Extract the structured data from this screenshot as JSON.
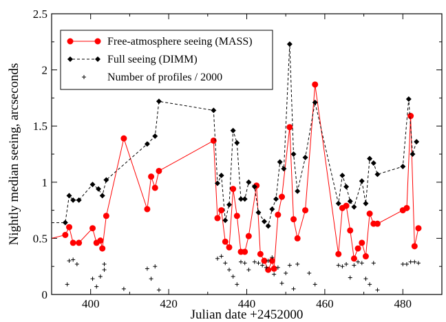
{
  "chart_data": {
    "type": "line",
    "xlabel": "Julian date +2452000",
    "ylabel": "Nightly median seeing, arcseconds",
    "xlim": [
      390,
      490
    ],
    "ylim": [
      0,
      2.5
    ],
    "x_ticks": [
      400,
      420,
      440,
      460,
      480
    ],
    "y_ticks": [
      0,
      0.5,
      1,
      1.5,
      2,
      2.5
    ],
    "x_tick_labels": [
      "400",
      "420",
      "440",
      "460",
      "480"
    ],
    "y_tick_labels": [
      "0",
      "0.5",
      "1",
      "1.5",
      "2",
      "2.5"
    ],
    "legend_position": "top-left",
    "series": [
      {
        "name": "Free-atmosphere seeing (MASS)",
        "style": "solid-line-circles",
        "color": "#ff0000",
        "points": [
          [
            390,
            0.5
          ],
          [
            393.5,
            0.53
          ],
          [
            394.5,
            0.6
          ],
          [
            395.5,
            0.46
          ],
          [
            397,
            0.46
          ],
          [
            400.5,
            0.59
          ],
          [
            401.5,
            0.46
          ],
          [
            402.5,
            0.48
          ],
          [
            403,
            0.41
          ],
          [
            404,
            0.7
          ],
          [
            408.5,
            1.39
          ],
          [
            414.5,
            0.76
          ],
          [
            415.5,
            1.05
          ],
          [
            416.5,
            0.95
          ],
          [
            417.5,
            1.1
          ],
          [
            431.5,
            1.37
          ],
          [
            432.5,
            0.68
          ],
          [
            433.5,
            0.75
          ],
          [
            434.5,
            0.47
          ],
          [
            435.5,
            0.42
          ],
          [
            436.5,
            0.94
          ],
          [
            437.5,
            0.7
          ],
          [
            438.5,
            0.38
          ],
          [
            439.5,
            0.38
          ],
          [
            440.5,
            0.52
          ],
          [
            442.5,
            0.97
          ],
          [
            443.5,
            0.36
          ],
          [
            444.5,
            0.3
          ],
          [
            445.5,
            0.22
          ],
          [
            446.5,
            0.3
          ],
          [
            447,
            0.23
          ],
          [
            448,
            0.71
          ],
          [
            449,
            0.87
          ],
          [
            451,
            1.49
          ],
          [
            452,
            0.67
          ],
          [
            453,
            0.5
          ],
          [
            455,
            0.75
          ],
          [
            457.5,
            1.87
          ],
          [
            463.5,
            0.36
          ],
          [
            464.5,
            0.77
          ],
          [
            465.5,
            0.79
          ],
          [
            466.5,
            0.57
          ],
          [
            467.5,
            0.32
          ],
          [
            468.5,
            0.41
          ],
          [
            469.5,
            0.46
          ],
          [
            470.5,
            0.34
          ],
          [
            471.5,
            0.72
          ],
          [
            472.5,
            0.63
          ],
          [
            473.5,
            0.63
          ],
          [
            480,
            0.75
          ],
          [
            481,
            0.77
          ],
          [
            482,
            1.59
          ],
          [
            483,
            0.43
          ],
          [
            484,
            0.59
          ]
        ]
      },
      {
        "name": "Full seeing (DIMM)",
        "style": "dashed-line-diamonds",
        "color": "#000000",
        "points": [
          [
            390,
            0.64
          ],
          [
            393.5,
            0.64
          ],
          [
            394.5,
            0.88
          ],
          [
            395.5,
            0.84
          ],
          [
            397,
            0.84
          ],
          [
            400.5,
            0.98
          ],
          [
            402,
            0.94
          ],
          [
            403,
            0.88
          ],
          [
            404,
            1.02
          ],
          [
            414.5,
            1.34
          ],
          [
            416.5,
            1.41
          ],
          [
            417.5,
            1.72
          ],
          [
            431.5,
            1.64
          ],
          [
            432.5,
            0.99
          ],
          [
            433.5,
            1.06
          ],
          [
            434.5,
            0.66
          ],
          [
            435.5,
            0.8
          ],
          [
            436.5,
            1.46
          ],
          [
            437.5,
            1.35
          ],
          [
            438.5,
            0.85
          ],
          [
            439.5,
            0.85
          ],
          [
            440.5,
            1.0
          ],
          [
            442,
            0.96
          ],
          [
            443,
            0.73
          ],
          [
            444.5,
            0.65
          ],
          [
            445.5,
            0.61
          ],
          [
            446.5,
            0.76
          ],
          [
            447.5,
            0.85
          ],
          [
            448.5,
            1.18
          ],
          [
            449.5,
            1.12
          ],
          [
            451,
            2.23
          ],
          [
            452,
            1.25
          ],
          [
            453,
            0.92
          ],
          [
            455,
            1.22
          ],
          [
            457.5,
            1.71
          ],
          [
            463.5,
            0.81
          ],
          [
            464.5,
            1.06
          ],
          [
            465.5,
            0.96
          ],
          [
            466.5,
            0.83
          ],
          [
            467.5,
            0.78
          ],
          [
            469.5,
            1.01
          ],
          [
            470.5,
            0.81
          ],
          [
            471.5,
            1.21
          ],
          [
            472.5,
            1.17
          ],
          [
            473.5,
            1.07
          ],
          [
            480,
            1.14
          ],
          [
            481.5,
            1.74
          ],
          [
            482.5,
            1.25
          ],
          [
            483.5,
            1.36
          ]
        ]
      },
      {
        "name": "Number of profiles / 2000",
        "style": "plus-markers",
        "color": "#000000",
        "points": [
          [
            394,
            0.09
          ],
          [
            394.5,
            0.3
          ],
          [
            395.5,
            0.31
          ],
          [
            396.5,
            0.27
          ],
          [
            400.5,
            0.14
          ],
          [
            401.5,
            0.07
          ],
          [
            402.5,
            0.16
          ],
          [
            403.5,
            0.27
          ],
          [
            403.5,
            0.22
          ],
          [
            408.5,
            0.05
          ],
          [
            414.5,
            0.23
          ],
          [
            415.5,
            0.14
          ],
          [
            416.5,
            0.25
          ],
          [
            417.5,
            0.04
          ],
          [
            432.5,
            0.32
          ],
          [
            433.5,
            0.34
          ],
          [
            434.5,
            0.28
          ],
          [
            435.5,
            0.22
          ],
          [
            436.5,
            0.16
          ],
          [
            437.5,
            0.09
          ],
          [
            438.5,
            0.29
          ],
          [
            439.5,
            0.28
          ],
          [
            440.5,
            0.22
          ],
          [
            442,
            0.29
          ],
          [
            443,
            0.28
          ],
          [
            444,
            0.26
          ],
          [
            445,
            0.24
          ],
          [
            445.5,
            0.3
          ],
          [
            446.5,
            0.33
          ],
          [
            447,
            0.18
          ],
          [
            448,
            0.24
          ],
          [
            449,
            0.1
          ],
          [
            450,
            0.19
          ],
          [
            451,
            0.26
          ],
          [
            452,
            0.05
          ],
          [
            453,
            0.27
          ],
          [
            456,
            0.19
          ],
          [
            457.5,
            0.09
          ],
          [
            463.5,
            0.26
          ],
          [
            464.5,
            0.25
          ],
          [
            465.5,
            0.27
          ],
          [
            466.5,
            0.15
          ],
          [
            467.5,
            0.26
          ],
          [
            468.5,
            0.29
          ],
          [
            469.5,
            0.28
          ],
          [
            470.5,
            0.14
          ],
          [
            471.5,
            0.09
          ],
          [
            472.5,
            0.28
          ],
          [
            473.5,
            0.04
          ],
          [
            480,
            0.27
          ],
          [
            481,
            0.27
          ],
          [
            482,
            0.29
          ],
          [
            483,
            0.29
          ],
          [
            484,
            0.28
          ]
        ]
      }
    ]
  }
}
